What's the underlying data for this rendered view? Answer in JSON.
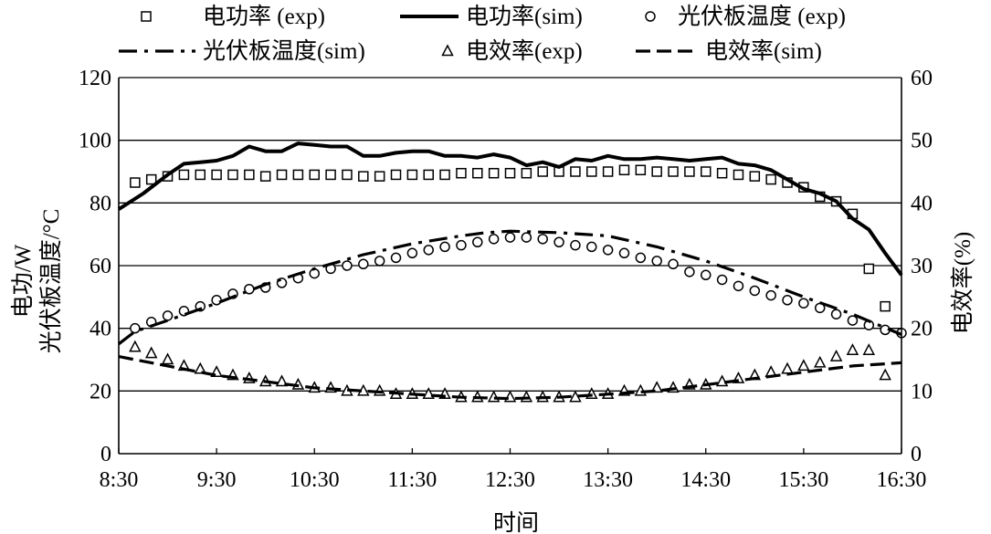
{
  "chart_data": {
    "type": "line",
    "xlabel": "时间",
    "ylabel_left": [
      "电功/W",
      "光伏板温度/°C"
    ],
    "ylabel_right": "电效率(%)",
    "x_ticks": [
      "8:30",
      "9:30",
      "10:30",
      "11:30",
      "12:30",
      "13:30",
      "14:30",
      "15:30",
      "16:30"
    ],
    "xlim": [
      "8:30",
      "16:30"
    ],
    "ylim_left": [
      0,
      120
    ],
    "ylim_right": [
      0,
      60
    ],
    "y_ticks_left": [
      "0",
      "20",
      "40",
      "60",
      "80",
      "100",
      "120"
    ],
    "y_ticks_right": [
      "0",
      "10",
      "20",
      "30",
      "40",
      "50",
      "60"
    ],
    "grid": "horizontal",
    "legend_position": "top",
    "colors": {
      "ink": "#000000",
      "grid": "#000000",
      "background": "#ffffff"
    },
    "series": [
      {
        "name": "电功率 (exp)",
        "marker": "square",
        "axis": "left",
        "points": [
          [
            "8:40",
            86.5
          ],
          [
            "8:50",
            87.5
          ],
          [
            "9:00",
            88.5
          ],
          [
            "9:10",
            89
          ],
          [
            "9:20",
            89
          ],
          [
            "9:30",
            89
          ],
          [
            "9:40",
            89
          ],
          [
            "9:50",
            89
          ],
          [
            "10:00",
            88.5
          ],
          [
            "10:10",
            89
          ],
          [
            "10:20",
            89
          ],
          [
            "10:30",
            89
          ],
          [
            "10:40",
            89
          ],
          [
            "10:50",
            89
          ],
          [
            "11:00",
            88.5
          ],
          [
            "11:10",
            88.5
          ],
          [
            "11:20",
            89
          ],
          [
            "11:30",
            89
          ],
          [
            "11:40",
            89
          ],
          [
            "11:50",
            89
          ],
          [
            "12:00",
            89.5
          ],
          [
            "12:10",
            89.5
          ],
          [
            "12:20",
            89.5
          ],
          [
            "12:30",
            89.5
          ],
          [
            "12:40",
            89.5
          ],
          [
            "12:50",
            90
          ],
          [
            "13:00",
            90
          ],
          [
            "13:10",
            90
          ],
          [
            "13:20",
            90
          ],
          [
            "13:30",
            90
          ],
          [
            "13:40",
            90.5
          ],
          [
            "13:50",
            90.5
          ],
          [
            "14:00",
            90
          ],
          [
            "14:10",
            90
          ],
          [
            "14:20",
            90
          ],
          [
            "14:30",
            90
          ],
          [
            "14:40",
            89.5
          ],
          [
            "14:50",
            89
          ],
          [
            "15:00",
            88.5
          ],
          [
            "15:10",
            87.5
          ],
          [
            "15:20",
            86.5
          ],
          [
            "15:30",
            85
          ],
          [
            "15:40",
            82
          ],
          [
            "15:50",
            80.5
          ],
          [
            "16:00",
            76.5
          ],
          [
            "16:10",
            59
          ],
          [
            "16:20",
            47
          ]
        ]
      },
      {
        "name": "电功率(sim)",
        "line": "solid",
        "axis": "left",
        "points": [
          [
            "8:30",
            78
          ],
          [
            "8:45",
            83
          ],
          [
            "9:00",
            89
          ],
          [
            "9:10",
            92.5
          ],
          [
            "9:20",
            93
          ],
          [
            "9:30",
            93.5
          ],
          [
            "9:40",
            95
          ],
          [
            "9:50",
            98
          ],
          [
            "10:00",
            96.5
          ],
          [
            "10:10",
            96.5
          ],
          [
            "10:20",
            99
          ],
          [
            "10:30",
            98.5
          ],
          [
            "10:40",
            98
          ],
          [
            "10:50",
            98
          ],
          [
            "11:00",
            95
          ],
          [
            "11:10",
            95
          ],
          [
            "11:20",
            96
          ],
          [
            "11:30",
            96.5
          ],
          [
            "11:40",
            96.5
          ],
          [
            "11:50",
            95
          ],
          [
            "12:00",
            95
          ],
          [
            "12:10",
            94.5
          ],
          [
            "12:20",
            95.5
          ],
          [
            "12:30",
            94.5
          ],
          [
            "12:40",
            92
          ],
          [
            "12:50",
            93
          ],
          [
            "13:00",
            91.5
          ],
          [
            "13:10",
            94
          ],
          [
            "13:20",
            93.5
          ],
          [
            "13:30",
            95
          ],
          [
            "13:40",
            94
          ],
          [
            "13:50",
            94
          ],
          [
            "14:00",
            94.5
          ],
          [
            "14:10",
            94
          ],
          [
            "14:20",
            93.5
          ],
          [
            "14:30",
            94
          ],
          [
            "14:40",
            94.5
          ],
          [
            "14:50",
            92.5
          ],
          [
            "15:00",
            92
          ],
          [
            "15:10",
            90.5
          ],
          [
            "15:20",
            87.5
          ],
          [
            "15:30",
            84.5
          ],
          [
            "15:40",
            83
          ],
          [
            "15:50",
            80.5
          ],
          [
            "16:00",
            75
          ],
          [
            "16:10",
            71.5
          ],
          [
            "16:20",
            64
          ],
          [
            "16:30",
            57
          ]
        ]
      },
      {
        "name": "光伏板温度 (exp)",
        "marker": "circle",
        "axis": "left",
        "points": [
          [
            "8:40",
            40
          ],
          [
            "8:50",
            42
          ],
          [
            "9:00",
            44
          ],
          [
            "9:10",
            45.5
          ],
          [
            "9:20",
            47
          ],
          [
            "9:30",
            49
          ],
          [
            "9:40",
            51
          ],
          [
            "9:50",
            52.5
          ],
          [
            "10:00",
            53
          ],
          [
            "10:10",
            54.5
          ],
          [
            "10:20",
            56
          ],
          [
            "10:30",
            57.5
          ],
          [
            "10:40",
            59
          ],
          [
            "10:50",
            60
          ],
          [
            "11:00",
            60.5
          ],
          [
            "11:10",
            61.5
          ],
          [
            "11:20",
            62.5
          ],
          [
            "11:30",
            64
          ],
          [
            "11:40",
            65
          ],
          [
            "11:50",
            66
          ],
          [
            "12:00",
            66.5
          ],
          [
            "12:10",
            67.5
          ],
          [
            "12:20",
            68.5
          ],
          [
            "12:30",
            69
          ],
          [
            "12:40",
            69
          ],
          [
            "12:50",
            68.5
          ],
          [
            "13:00",
            67.5
          ],
          [
            "13:10",
            66.5
          ],
          [
            "13:20",
            66
          ],
          [
            "13:30",
            65
          ],
          [
            "13:40",
            64
          ],
          [
            "13:50",
            62.5
          ],
          [
            "14:00",
            61.5
          ],
          [
            "14:10",
            60.5
          ],
          [
            "14:20",
            58
          ],
          [
            "14:30",
            57
          ],
          [
            "14:40",
            55.5
          ],
          [
            "14:50",
            53.5
          ],
          [
            "15:00",
            52
          ],
          [
            "15:10",
            50.5
          ],
          [
            "15:20",
            49
          ],
          [
            "15:30",
            48
          ],
          [
            "15:40",
            46.5
          ],
          [
            "15:50",
            44.5
          ],
          [
            "16:00",
            42.5
          ],
          [
            "16:10",
            41
          ],
          [
            "16:20",
            39.5
          ],
          [
            "16:30",
            38.5
          ]
        ]
      },
      {
        "name": "光伏板温度(sim)",
        "line": "dash-dot",
        "axis": "left",
        "points": [
          [
            "8:30",
            35
          ],
          [
            "8:40",
            39
          ],
          [
            "9:00",
            42.5
          ],
          [
            "9:30",
            48
          ],
          [
            "10:00",
            54
          ],
          [
            "10:30",
            59
          ],
          [
            "11:00",
            63.5
          ],
          [
            "11:30",
            67
          ],
          [
            "12:00",
            69.5
          ],
          [
            "12:15",
            70.5
          ],
          [
            "12:30",
            71
          ],
          [
            "13:00",
            70.5
          ],
          [
            "13:30",
            69.5
          ],
          [
            "14:00",
            66
          ],
          [
            "14:30",
            61.5
          ],
          [
            "15:00",
            56
          ],
          [
            "15:30",
            50
          ],
          [
            "16:00",
            44.5
          ],
          [
            "16:30",
            38
          ]
        ]
      },
      {
        "name": "电效率(exp)",
        "marker": "triangle",
        "axis": "right",
        "points": [
          [
            "8:40",
            17
          ],
          [
            "8:50",
            16
          ],
          [
            "9:00",
            15
          ],
          [
            "9:10",
            14
          ],
          [
            "9:20",
            13.5
          ],
          [
            "9:30",
            13
          ],
          [
            "9:40",
            12.5
          ],
          [
            "9:50",
            12
          ],
          [
            "10:00",
            11.5
          ],
          [
            "10:10",
            11.5
          ],
          [
            "10:20",
            11
          ],
          [
            "10:30",
            10.5
          ],
          [
            "10:40",
            10.5
          ],
          [
            "10:50",
            10
          ],
          [
            "11:00",
            10
          ],
          [
            "11:10",
            10
          ],
          [
            "11:20",
            9.5
          ],
          [
            "11:30",
            9.5
          ],
          [
            "11:40",
            9.5
          ],
          [
            "11:50",
            9.5
          ],
          [
            "12:00",
            9
          ],
          [
            "12:10",
            9
          ],
          [
            "12:20",
            9
          ],
          [
            "12:30",
            9
          ],
          [
            "12:40",
            9
          ],
          [
            "12:50",
            9
          ],
          [
            "13:00",
            9
          ],
          [
            "13:10",
            9
          ],
          [
            "13:20",
            9.5
          ],
          [
            "13:30",
            9.5
          ],
          [
            "13:40",
            10
          ],
          [
            "13:50",
            10
          ],
          [
            "14:00",
            10.5
          ],
          [
            "14:10",
            10.5
          ],
          [
            "14:20",
            11
          ],
          [
            "14:30",
            11
          ],
          [
            "14:40",
            11.5
          ],
          [
            "14:50",
            12
          ],
          [
            "15:00",
            12.5
          ],
          [
            "15:10",
            13
          ],
          [
            "15:20",
            13.5
          ],
          [
            "15:30",
            14
          ],
          [
            "15:40",
            14.5
          ],
          [
            "15:50",
            15.5
          ],
          [
            "16:00",
            16.5
          ],
          [
            "16:10",
            16.5
          ],
          [
            "16:20",
            12.5
          ]
        ]
      },
      {
        "name": "电效率(sim)",
        "line": "dashed",
        "axis": "right",
        "points": [
          [
            "8:30",
            15.5
          ],
          [
            "9:00",
            14
          ],
          [
            "9:30",
            12.5
          ],
          [
            "10:00",
            11.5
          ],
          [
            "10:30",
            10.5
          ],
          [
            "11:00",
            10
          ],
          [
            "11:30",
            9.5
          ],
          [
            "12:00",
            9
          ],
          [
            "12:30",
            8.8
          ],
          [
            "13:00",
            9
          ],
          [
            "13:30",
            9.5
          ],
          [
            "14:00",
            10
          ],
          [
            "14:30",
            11
          ],
          [
            "15:00",
            12
          ],
          [
            "15:30",
            13
          ],
          [
            "16:00",
            14
          ],
          [
            "16:30",
            14.5
          ]
        ]
      }
    ]
  }
}
